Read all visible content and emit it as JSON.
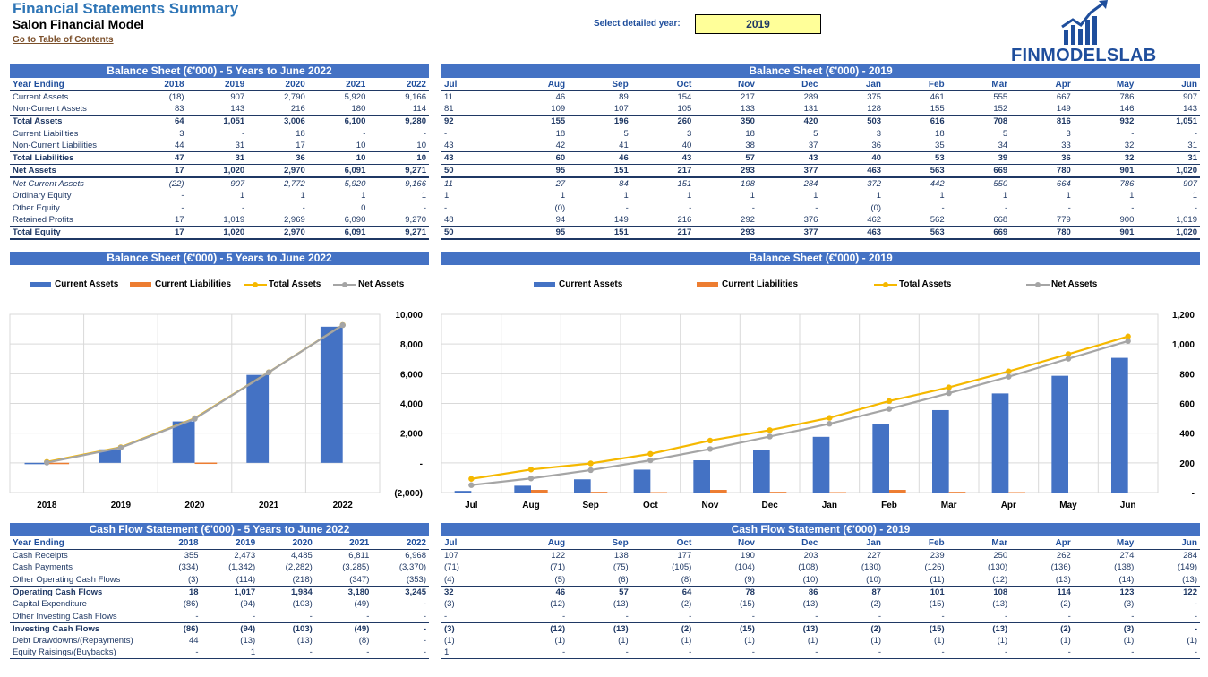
{
  "header": {
    "title": "Financial Statements Summary",
    "subtitle": "Salon Financial Model",
    "toc_link": "Go to Table of Contents",
    "select_label": "Select detailed year:",
    "selected_year": "2019",
    "logo_text": "FINMODELSLAB"
  },
  "colors": {
    "accent": "#4472c4",
    "bar_blue": "#4472c4",
    "bar_orange": "#ed7d31",
    "line_yellow": "#f5b800",
    "line_gray": "#a5a5a5",
    "highlight": "#ffff99"
  },
  "bs5": {
    "title": "Balance Sheet (€'000) - 5 Years to June 2022",
    "head": [
      "Year Ending",
      "2018",
      "2019",
      "2020",
      "2021",
      "2022"
    ],
    "rows": [
      {
        "cells": [
          "Current Assets",
          "(18)",
          "907",
          "2,790",
          "5,920",
          "9,166"
        ]
      },
      {
        "cells": [
          "Non-Current Assets",
          "83",
          "143",
          "216",
          "180",
          "114"
        ]
      },
      {
        "cells": [
          "Total Assets",
          "64",
          "1,051",
          "3,006",
          "6,100",
          "9,280"
        ],
        "style": "bold"
      },
      {
        "cells": [
          "Current Liabilities",
          "3",
          "-",
          "18",
          "-",
          "-"
        ]
      },
      {
        "cells": [
          "Non-Current Liabilities",
          "44",
          "31",
          "17",
          "10",
          "10"
        ]
      },
      {
        "cells": [
          "Total Liabilities",
          "47",
          "31",
          "36",
          "10",
          "10"
        ],
        "style": "bold"
      },
      {
        "cells": [
          "Net Assets",
          "17",
          "1,020",
          "2,970",
          "6,091",
          "9,271"
        ],
        "style": "bold dbl"
      },
      {
        "cells": [
          "Net Current Assets",
          "(22)",
          "907",
          "2,772",
          "5,920",
          "9,166"
        ],
        "style": "it"
      },
      {
        "cells": [
          "Ordinary Equity",
          "-",
          "1",
          "1",
          "1",
          "1"
        ]
      },
      {
        "cells": [
          "Other Equity",
          "-",
          "-",
          "-",
          "0",
          "-"
        ]
      },
      {
        "cells": [
          "Retained Profits",
          "17",
          "1,019",
          "2,969",
          "6,090",
          "9,270"
        ]
      },
      {
        "cells": [
          "Total Equity",
          "17",
          "1,020",
          "2,970",
          "6,091",
          "9,271"
        ],
        "style": "bold dbl"
      }
    ]
  },
  "bsm": {
    "title": "Balance Sheet (€'000) - 2019",
    "head": [
      "Jul",
      "Aug",
      "Sep",
      "Oct",
      "Nov",
      "Dec",
      "Jan",
      "Feb",
      "Mar",
      "Apr",
      "May",
      "Jun"
    ],
    "rows": [
      {
        "cells": [
          "11",
          "46",
          "89",
          "154",
          "217",
          "289",
          "375",
          "461",
          "555",
          "667",
          "786",
          "907"
        ]
      },
      {
        "cells": [
          "81",
          "109",
          "107",
          "105",
          "133",
          "131",
          "128",
          "155",
          "152",
          "149",
          "146",
          "143"
        ]
      },
      {
        "cells": [
          "92",
          "155",
          "196",
          "260",
          "350",
          "420",
          "503",
          "616",
          "708",
          "816",
          "932",
          "1,051"
        ],
        "style": "bold"
      },
      {
        "cells": [
          "-",
          "18",
          "5",
          "3",
          "18",
          "5",
          "3",
          "18",
          "5",
          "3",
          "-",
          "-"
        ]
      },
      {
        "cells": [
          "43",
          "42",
          "41",
          "40",
          "38",
          "37",
          "36",
          "35",
          "34",
          "33",
          "32",
          "31"
        ]
      },
      {
        "cells": [
          "43",
          "60",
          "46",
          "43",
          "57",
          "43",
          "40",
          "53",
          "39",
          "36",
          "32",
          "31"
        ],
        "style": "bold"
      },
      {
        "cells": [
          "50",
          "95",
          "151",
          "217",
          "293",
          "377",
          "463",
          "563",
          "669",
          "780",
          "901",
          "1,020"
        ],
        "style": "bold dbl"
      },
      {
        "cells": [
          "11",
          "27",
          "84",
          "151",
          "198",
          "284",
          "372",
          "442",
          "550",
          "664",
          "786",
          "907"
        ],
        "style": "it"
      },
      {
        "cells": [
          "1",
          "1",
          "1",
          "1",
          "1",
          "1",
          "1",
          "1",
          "1",
          "1",
          "1",
          "1"
        ]
      },
      {
        "cells": [
          "-",
          "(0)",
          "-",
          "-",
          "-",
          "-",
          "(0)",
          "-",
          "-",
          "-",
          "-",
          "-"
        ]
      },
      {
        "cells": [
          "48",
          "94",
          "149",
          "216",
          "292",
          "376",
          "462",
          "562",
          "668",
          "779",
          "900",
          "1,019"
        ]
      },
      {
        "cells": [
          "50",
          "95",
          "151",
          "217",
          "293",
          "377",
          "463",
          "563",
          "669",
          "780",
          "901",
          "1,020"
        ],
        "style": "bold dbl"
      }
    ]
  },
  "chart_headers": {
    "left": "Balance Sheet (€'000) - 5 Years to June 2022",
    "right": "Balance Sheet (€'000) - 2019"
  },
  "legend": {
    "current_assets": "Current Assets",
    "current_liabilities": "Current Liabilities",
    "total_assets": "Total Assets",
    "net_assets": "Net Assets"
  },
  "chart_data": [
    {
      "type": "bar",
      "categories": [
        "2018",
        "2019",
        "2020",
        "2021",
        "2022"
      ],
      "series": [
        {
          "name": "Current Assets",
          "kind": "bar",
          "values": [
            -18,
            907,
            2790,
            5920,
            9166
          ]
        },
        {
          "name": "Current Liabilities",
          "kind": "bar",
          "values": [
            3,
            0,
            18,
            0,
            0
          ]
        },
        {
          "name": "Total Assets",
          "kind": "line",
          "values": [
            64,
            1051,
            3006,
            6100,
            9280
          ]
        },
        {
          "name": "Net Assets",
          "kind": "line",
          "values": [
            17,
            1020,
            2970,
            6091,
            9271
          ]
        }
      ],
      "ylim": [
        -2000,
        10000
      ],
      "yticks": [
        "(2,000)",
        "-",
        "2,000",
        "4,000",
        "6,000",
        "8,000",
        "10,000"
      ],
      "ytick_values": [
        -2000,
        0,
        2000,
        4000,
        6000,
        8000,
        10000
      ],
      "legend_position": "top",
      "grid": true
    },
    {
      "type": "bar",
      "categories": [
        "Jul",
        "Aug",
        "Sep",
        "Oct",
        "Nov",
        "Dec",
        "Jan",
        "Feb",
        "Mar",
        "Apr",
        "May",
        "Jun"
      ],
      "series": [
        {
          "name": "Current Assets",
          "kind": "bar",
          "values": [
            11,
            46,
            89,
            154,
            217,
            289,
            375,
            461,
            555,
            667,
            786,
            907
          ]
        },
        {
          "name": "Current Liabilities",
          "kind": "bar",
          "values": [
            0,
            18,
            5,
            3,
            18,
            5,
            3,
            18,
            5,
            3,
            0,
            0
          ]
        },
        {
          "name": "Total Assets",
          "kind": "line",
          "values": [
            92,
            155,
            196,
            260,
            350,
            420,
            503,
            616,
            708,
            816,
            932,
            1051
          ]
        },
        {
          "name": "Net Assets",
          "kind": "line",
          "values": [
            50,
            95,
            151,
            217,
            293,
            377,
            463,
            563,
            669,
            780,
            901,
            1020
          ]
        }
      ],
      "ylim": [
        0,
        1200
      ],
      "yticks": [
        "-",
        "200",
        "400",
        "600",
        "800",
        "1,000",
        "1,200"
      ],
      "ytick_values": [
        0,
        200,
        400,
        600,
        800,
        1000,
        1200
      ],
      "legend_position": "top",
      "grid": true
    }
  ],
  "cf5": {
    "title": "Cash Flow Statement (€'000) - 5 Years to June 2022",
    "head": [
      "Year Ending",
      "2018",
      "2019",
      "2020",
      "2021",
      "2022"
    ],
    "rows": [
      {
        "cells": [
          "Cash Receipts",
          "355",
          "2,473",
          "4,485",
          "6,811",
          "6,968"
        ]
      },
      {
        "cells": [
          "Cash Payments",
          "(334)",
          "(1,342)",
          "(2,282)",
          "(3,285)",
          "(3,370)"
        ]
      },
      {
        "cells": [
          "Other Operating Cash Flows",
          "(3)",
          "(114)",
          "(218)",
          "(347)",
          "(353)"
        ]
      },
      {
        "cells": [
          "Operating Cash Flows",
          "18",
          "1,017",
          "1,984",
          "3,180",
          "3,245"
        ],
        "style": "bold"
      },
      {
        "cells": [
          "Capital Expenditure",
          "(86)",
          "(94)",
          "(103)",
          "(49)",
          "-"
        ]
      },
      {
        "cells": [
          "Other Investing Cash Flows",
          "-",
          "-",
          "-",
          "-",
          "-"
        ]
      },
      {
        "cells": [
          "Investing Cash Flows",
          "(86)",
          "(94)",
          "(103)",
          "(49)",
          "-"
        ],
        "style": "bold"
      },
      {
        "cells": [
          "Debt Drawdowns/(Repayments)",
          "44",
          "(13)",
          "(13)",
          "(8)",
          "-"
        ]
      },
      {
        "cells": [
          "Equity Raisings/(Buybacks)",
          "-",
          "1",
          "-",
          "-",
          "-"
        ]
      }
    ]
  },
  "cfm": {
    "title": "Cash Flow Statement (€'000) - 2019",
    "head": [
      "Jul",
      "Aug",
      "Sep",
      "Oct",
      "Nov",
      "Dec",
      "Jan",
      "Feb",
      "Mar",
      "Apr",
      "May",
      "Jun"
    ],
    "rows": [
      {
        "cells": [
          "107",
          "122",
          "138",
          "177",
          "190",
          "203",
          "227",
          "239",
          "250",
          "262",
          "274",
          "284"
        ]
      },
      {
        "cells": [
          "(71)",
          "(71)",
          "(75)",
          "(105)",
          "(104)",
          "(108)",
          "(130)",
          "(126)",
          "(130)",
          "(136)",
          "(138)",
          "(149)"
        ]
      },
      {
        "cells": [
          "(4)",
          "(5)",
          "(6)",
          "(8)",
          "(9)",
          "(10)",
          "(10)",
          "(11)",
          "(12)",
          "(13)",
          "(14)",
          "(13)"
        ]
      },
      {
        "cells": [
          "32",
          "46",
          "57",
          "64",
          "78",
          "86",
          "87",
          "101",
          "108",
          "114",
          "123",
          "122"
        ],
        "style": "bold"
      },
      {
        "cells": [
          "(3)",
          "(12)",
          "(13)",
          "(2)",
          "(15)",
          "(13)",
          "(2)",
          "(15)",
          "(13)",
          "(2)",
          "(3)",
          "-"
        ]
      },
      {
        "cells": [
          "-",
          "-",
          "-",
          "-",
          "-",
          "-",
          "-",
          "-",
          "-",
          "-",
          "-",
          "-"
        ]
      },
      {
        "cells": [
          "(3)",
          "(12)",
          "(13)",
          "(2)",
          "(15)",
          "(13)",
          "(2)",
          "(15)",
          "(13)",
          "(2)",
          "(3)",
          "-"
        ],
        "style": "bold"
      },
      {
        "cells": [
          "(1)",
          "(1)",
          "(1)",
          "(1)",
          "(1)",
          "(1)",
          "(1)",
          "(1)",
          "(1)",
          "(1)",
          "(1)",
          "(1)"
        ]
      },
      {
        "cells": [
          "1",
          "-",
          "-",
          "-",
          "-",
          "-",
          "-",
          "-",
          "-",
          "-",
          "-",
          "-"
        ]
      }
    ]
  }
}
